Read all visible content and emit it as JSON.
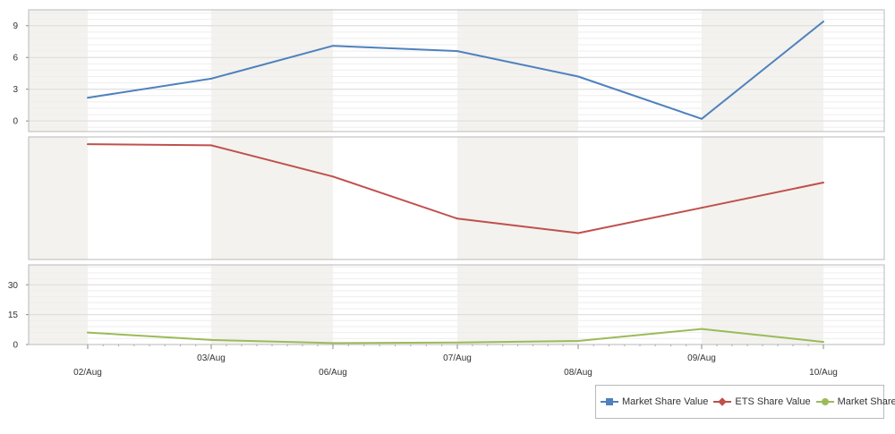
{
  "chart_data": {
    "type": "line",
    "categories": [
      "02/Aug",
      "03/Aug",
      "06/Aug",
      "07/Aug",
      "08/Aug",
      "09/Aug",
      "10/Aug"
    ],
    "panes": [
      {
        "series": [
          {
            "name": "Market Share Value",
            "values": [
              2.2,
              4.0,
              7.1,
              6.6,
              4.2,
              0.2,
              9.4
            ]
          }
        ],
        "ylim": [
          -1,
          10.5
        ],
        "yticks": [
          0,
          3,
          6,
          9
        ]
      },
      {
        "series": [
          {
            "name": "ETS Share Value",
            "values": [
              9.6,
              9.5,
              6.9,
              3.4,
              2.2,
              4.3,
              6.4
            ]
          }
        ],
        "ylim": [
          0,
          10.2
        ],
        "yticks": []
      },
      {
        "series": [
          {
            "name": "Market Share",
            "values": [
              6,
              2.3,
              0.7,
              1.0,
              1.8,
              7.8,
              1.3
            ]
          }
        ],
        "ylim": [
          0,
          40
        ],
        "yticks": [
          0,
          15,
          30
        ]
      }
    ],
    "grid": true,
    "legend_position": "bottom-right"
  },
  "colors": {
    "Market Share Value": "#4f81bd",
    "ETS Share Value": "#c0504d",
    "Market Share": "#9bbb59"
  },
  "legend_icons": {
    "Market Share Value": "square",
    "ETS Share Value": "diamond",
    "Market Share": "circle"
  }
}
